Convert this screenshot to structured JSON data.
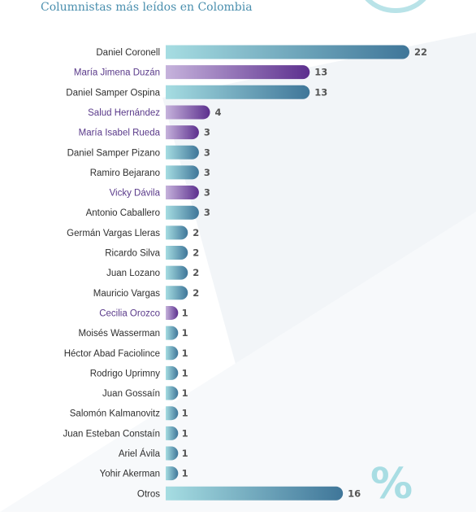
{
  "title": "Columnistas más leídos en Colombia",
  "symbol": "%",
  "colors": {
    "teal_start": "#a6dde2",
    "teal_end": "#3f7699",
    "purple_start": "#c6b3dc",
    "purple_end": "#5c2f8e",
    "label_default": "#2f2f2f",
    "label_highlight": "#5a3a8a",
    "value": "#555555",
    "title": "#4a8fae"
  },
  "chart_data": {
    "type": "bar",
    "orientation": "horizontal",
    "categories": [
      "Daniel Coronell",
      "María Jimena Duzán",
      "Daniel Samper Ospina",
      "Salud Hernández",
      "María Isabel Rueda",
      "Daniel Samper Pizano",
      "Ramiro Bejarano",
      "Vicky Dávila",
      "Antonio Caballero",
      "Germán Vargas Lleras",
      "Ricardo Silva",
      "Juan Lozano",
      "Mauricio Vargas",
      "Cecilia Orozco",
      "Moisés Wasserman",
      "Héctor Abad Faciolince",
      "Rodrigo Uprimny",
      "Juan Gossaín",
      "Salomón Kalmanovitz",
      "Juan Esteban Constaín",
      "Ariel Ávila",
      "Yohir Akerman",
      "Otros"
    ],
    "values": [
      22,
      13,
      13,
      4,
      3,
      3,
      3,
      3,
      3,
      2,
      2,
      2,
      2,
      1,
      1,
      1,
      1,
      1,
      1,
      1,
      1,
      1,
      16
    ],
    "highlight": [
      false,
      true,
      false,
      true,
      true,
      false,
      false,
      true,
      false,
      false,
      false,
      false,
      false,
      true,
      false,
      false,
      false,
      false,
      false,
      false,
      false,
      false,
      false
    ],
    "xlim": [
      0,
      22
    ],
    "grid": false,
    "legend": "none"
  }
}
